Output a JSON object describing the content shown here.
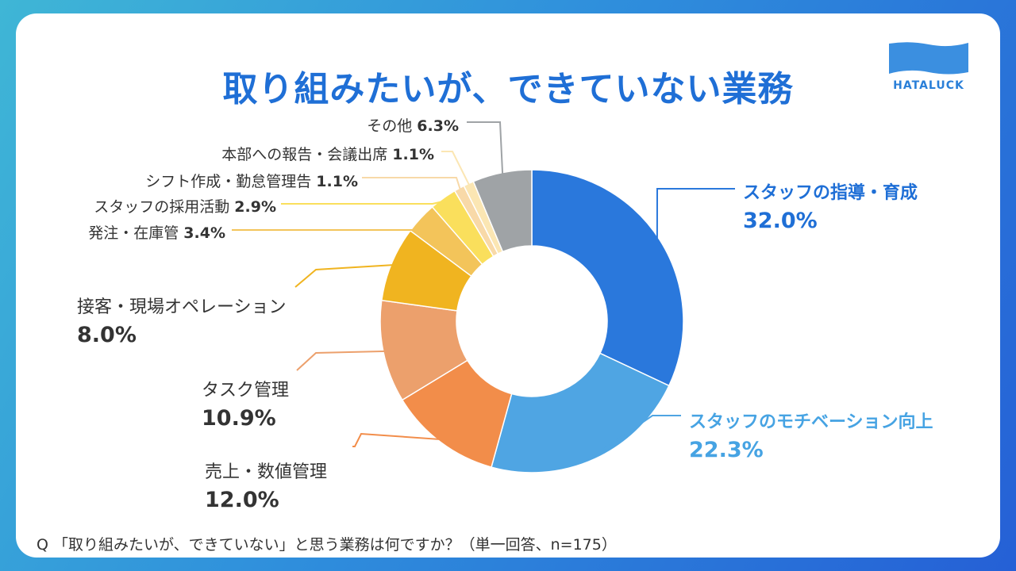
{
  "title": "取り組みたいが、できていない業務",
  "logo_text": "HATALUCK",
  "footnote": "Q 「取り組みたいが、できていない」と思う業務は何ですか？（単一回答、n=175）",
  "chart_data": {
    "type": "pie",
    "donut": true,
    "title": "取り組みたいが、できていない業務",
    "slices": [
      {
        "label": "スタッフの指導・育成",
        "value": 32.0,
        "value_label": "32.0%",
        "color": "#2a78dc"
      },
      {
        "label": "スタッフのモチベーション向上",
        "value": 22.3,
        "value_label": "22.3%",
        "color": "#4fa5e3"
      },
      {
        "label": "売上・数値管理",
        "value": 12.0,
        "value_label": "12.0%",
        "color": "#f28d4a"
      },
      {
        "label": "タスク管理",
        "value": 10.9,
        "value_label": "10.9%",
        "color": "#eca06c"
      },
      {
        "label": "接客・現場オペレーション",
        "value": 8.0,
        "value_label": "8.0%",
        "color": "#f0b420"
      },
      {
        "label": "発注・在庫管",
        "value": 3.4,
        "value_label": "3.4%",
        "color": "#f3c45a"
      },
      {
        "label": "スタッフの採用活動",
        "value": 2.9,
        "value_label": "2.9%",
        "color": "#fadf5c"
      },
      {
        "label": "シフト作成・勤怠管理告",
        "value": 1.1,
        "value_label": "1.1%",
        "color": "#f8d9a8"
      },
      {
        "label": "本部への報告・会議出席",
        "value": 1.1,
        "value_label": "1.1%",
        "color": "#fbe6b3"
      },
      {
        "label": "その他",
        "value": 6.3,
        "value_label": "6.3%",
        "color": "#9fa3a6"
      }
    ]
  }
}
